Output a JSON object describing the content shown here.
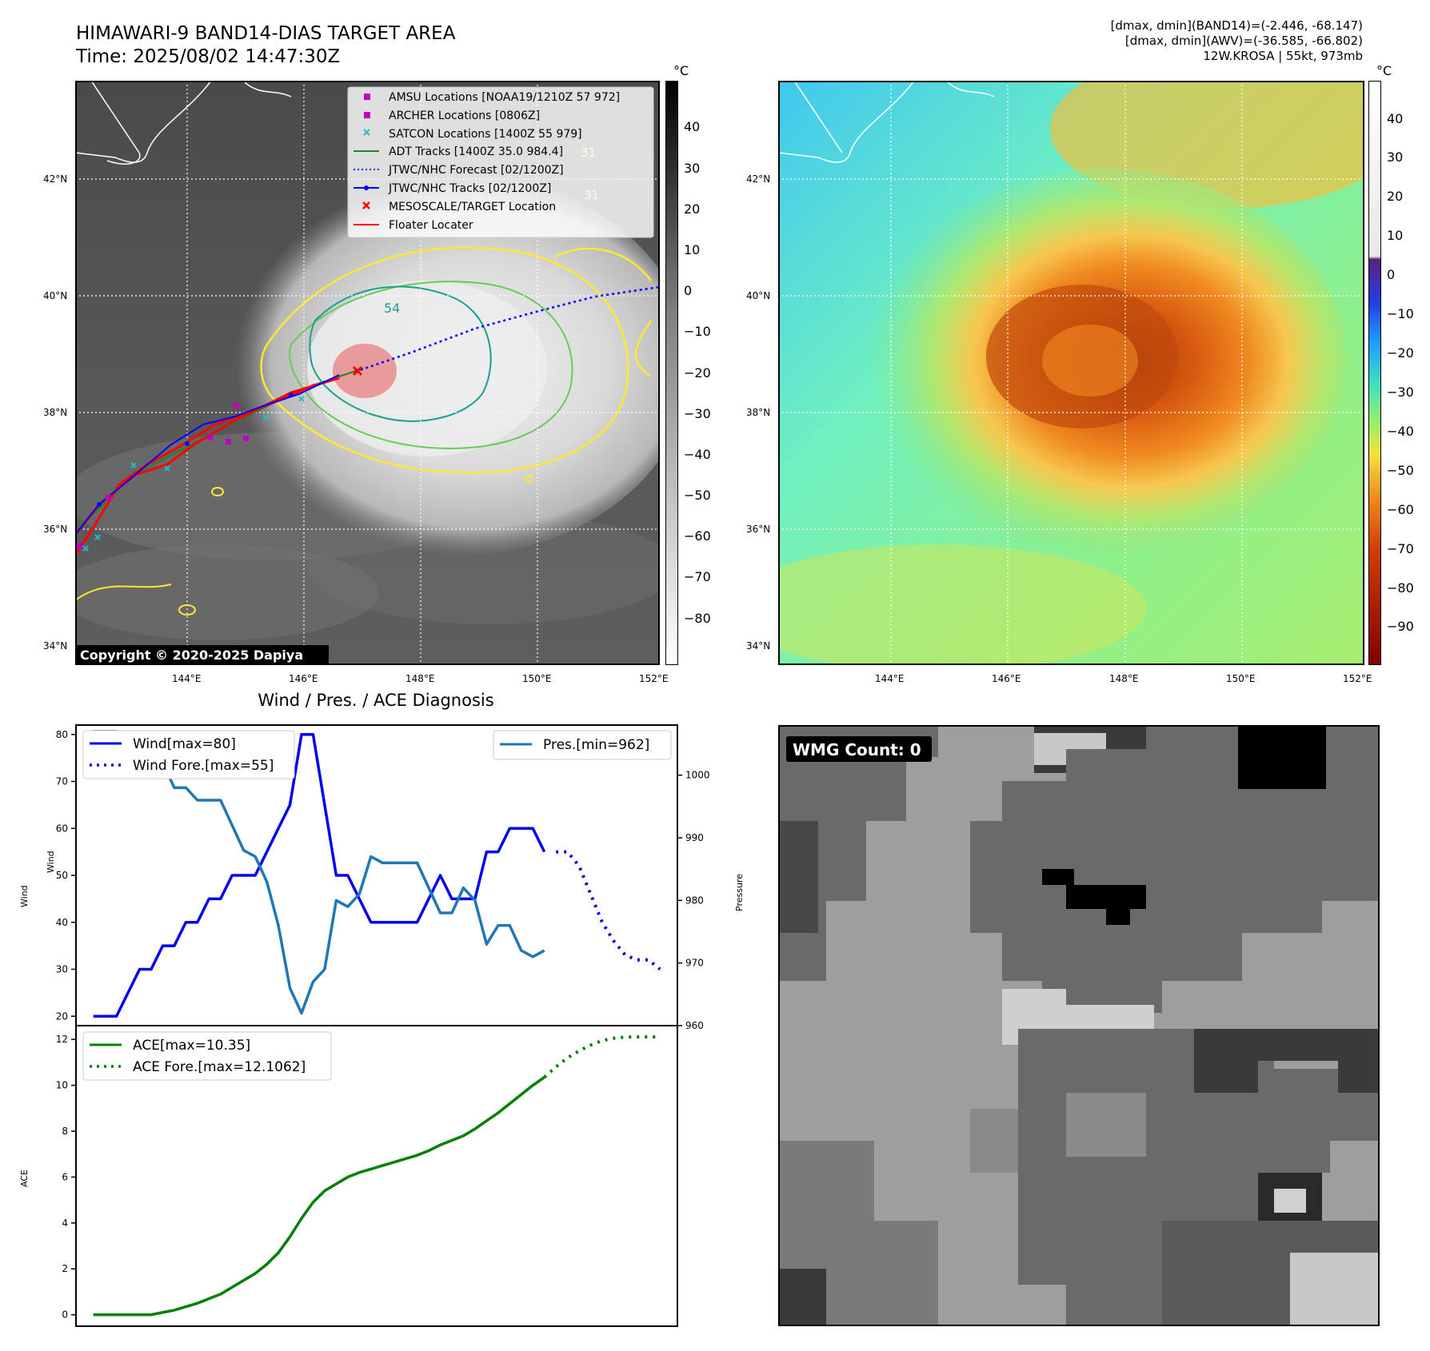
{
  "header": {
    "title_line1": "HIMAWARI-9 BAND14-DIAS TARGET AREA",
    "title_line2": "Time: 2025/08/02 14:47:30Z",
    "info_line1": "[dmax, dmin](BAND14)=(-2.446, -68.147)",
    "info_line2": "[dmax, dmin](AWV)=(-36.585, -66.802)",
    "info_line3": "12W.KROSA | 55kt, 973mb"
  },
  "map": {
    "lat_labels": [
      "42°N",
      "40°N",
      "38°N",
      "36°N",
      "34°N"
    ],
    "lon_labels": [
      "144°E",
      "146°E",
      "148°E",
      "150°E",
      "152°E"
    ],
    "copyright": "Copyright © 2020-2025 Dapiya",
    "contour_labels": [
      "54",
      "31",
      "31"
    ],
    "legend": [
      {
        "label": "AMSU Locations [NOAA19/1210Z 57 972]",
        "marker": "square",
        "color": "#c000c0"
      },
      {
        "label": "ARCHER Locations [0806Z]",
        "marker": "square",
        "color": "#c000c0"
      },
      {
        "label": "SATCON Locations [1400Z 55 979]",
        "marker": "x",
        "color": "#20c0c0"
      },
      {
        "label": "ADT Tracks [1400Z 35.0 984.4]",
        "marker": "line",
        "color": "#1a8a1a"
      },
      {
        "label": "JTWC/NHC Forecast [02/1200Z]",
        "marker": "dotted",
        "color": "#0000ff"
      },
      {
        "label": "JTWC/NHC Tracks [02/1200Z]",
        "marker": "line-dot",
        "color": "#0000ff"
      },
      {
        "label": "MESOSCALE/TARGET Location",
        "marker": "x",
        "color": "#ff0000"
      },
      {
        "label": "Floater Locater",
        "marker": "line",
        "color": "#ff0000"
      }
    ]
  },
  "colorbar_gray": {
    "unit": "°C",
    "ticks": [
      "40",
      "30",
      "20",
      "10",
      "0",
      "−10",
      "−20",
      "−30",
      "−40",
      "−50",
      "−60",
      "−70",
      "−80"
    ]
  },
  "colorbar_color": {
    "unit": "°C",
    "ticks": [
      "40",
      "30",
      "20",
      "10",
      "0",
      "−10",
      "−20",
      "−30",
      "−40",
      "−50",
      "−60",
      "−70",
      "−80",
      "−90"
    ]
  },
  "wmg": {
    "label": "WMG Count: 0"
  },
  "chart_data": [
    {
      "type": "line",
      "title": "Wind / Pres. / ACE Diagnosis",
      "xlabel": "",
      "ylabel": "Wind",
      "ylabel_right": "Pressure",
      "ylim": [
        18,
        82
      ],
      "ylim_right": [
        960,
        1008
      ],
      "y_ticks": [
        20,
        30,
        40,
        50,
        60,
        70,
        80
      ],
      "y_ticks_right": [
        960,
        970,
        980,
        990,
        1000
      ],
      "legend_left": [
        "Wind[max=80]",
        "Wind Fore.[max=55]"
      ],
      "legend_right": [
        "Pres.[min=962]"
      ],
      "series": [
        {
          "name": "Wind[max=80]",
          "color": "#0000ee",
          "style": "solid",
          "x": [
            0,
            1,
            2,
            3,
            4,
            5,
            6,
            7,
            8,
            9,
            10,
            11,
            12,
            13,
            14,
            15,
            16,
            17,
            18,
            19,
            20,
            21,
            22,
            23,
            24,
            25,
            26,
            27,
            28,
            29,
            30,
            31,
            32,
            33,
            34,
            35,
            36,
            37,
            38,
            39
          ],
          "values": [
            20,
            20,
            20,
            25,
            30,
            30,
            35,
            35,
            40,
            40,
            45,
            45,
            50,
            50,
            50,
            55,
            60,
            65,
            80,
            80,
            65,
            50,
            50,
            45,
            40,
            40,
            40,
            40,
            40,
            45,
            50,
            45,
            45,
            45,
            55,
            55,
            60,
            60,
            60,
            55
          ]
        },
        {
          "name": "Wind Fore.[max=55]",
          "color": "#0000ee",
          "style": "dotted",
          "x": [
            40,
            41,
            42,
            43,
            44,
            45,
            46,
            47,
            48,
            49
          ],
          "values": [
            55,
            55,
            52,
            46,
            40,
            36,
            33,
            32,
            32,
            30
          ]
        },
        {
          "name": "Pres.[min=962]",
          "color": "#1f77b4",
          "style": "solid",
          "axis": "right",
          "x": [
            0,
            1,
            2,
            3,
            4,
            5,
            6,
            7,
            8,
            9,
            10,
            11,
            12,
            13,
            14,
            15,
            16,
            17,
            18,
            19,
            20,
            21,
            22,
            23,
            24,
            25,
            26,
            27,
            28,
            29,
            30,
            31,
            32,
            33,
            34,
            35,
            36,
            37,
            38,
            39
          ],
          "values": [
            1007,
            1007,
            1007,
            1003,
            1003,
            1002,
            1002,
            998,
            998,
            996,
            996,
            996,
            992,
            988,
            987,
            983,
            976,
            966,
            962,
            967,
            969,
            980,
            979,
            981,
            987,
            986,
            986,
            986,
            986,
            982,
            978,
            978,
            982,
            980,
            973,
            976,
            976,
            972,
            971,
            972
          ]
        }
      ]
    },
    {
      "type": "line",
      "title": "",
      "xlabel": "",
      "ylabel": "ACE",
      "ylim": [
        -0.5,
        12.6
      ],
      "y_ticks": [
        0,
        2,
        4,
        6,
        8,
        10,
        12
      ],
      "legend": [
        "ACE[max=10.35]",
        "ACE Fore.[max=12.1062]"
      ],
      "series": [
        {
          "name": "ACE[max=10.35]",
          "color": "#008000",
          "style": "solid",
          "x": [
            0,
            1,
            2,
            3,
            4,
            5,
            6,
            7,
            8,
            9,
            10,
            11,
            12,
            13,
            14,
            15,
            16,
            17,
            18,
            19,
            20,
            21,
            22,
            23,
            24,
            25,
            26,
            27,
            28,
            29,
            30,
            31,
            32,
            33,
            34,
            35,
            36,
            37,
            38,
            39
          ],
          "values": [
            0,
            0,
            0,
            0,
            0,
            0,
            0.1,
            0.2,
            0.35,
            0.5,
            0.7,
            0.9,
            1.2,
            1.5,
            1.8,
            2.2,
            2.7,
            3.4,
            4.2,
            4.9,
            5.4,
            5.7,
            6.0,
            6.2,
            6.35,
            6.5,
            6.65,
            6.8,
            6.95,
            7.15,
            7.4,
            7.6,
            7.8,
            8.1,
            8.45,
            8.8,
            9.2,
            9.6,
            10.0,
            10.35
          ]
        },
        {
          "name": "ACE Fore.[max=12.1062]",
          "color": "#008000",
          "style": "dotted",
          "x": [
            39,
            40,
            41,
            42,
            43,
            44,
            45,
            46,
            47,
            48,
            49
          ],
          "values": [
            10.35,
            10.8,
            11.2,
            11.5,
            11.75,
            11.95,
            12.05,
            12.1,
            12.1062,
            12.1062,
            12.1062
          ]
        }
      ]
    }
  ]
}
